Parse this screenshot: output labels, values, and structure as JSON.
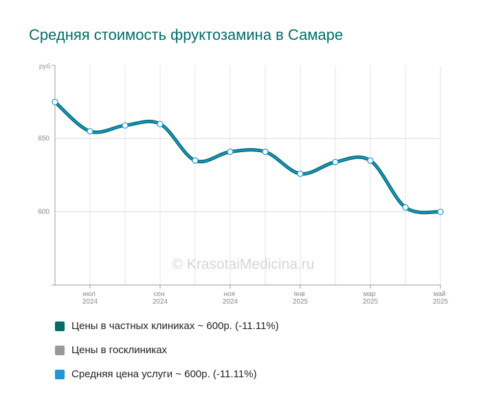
{
  "chart_data": {
    "type": "line",
    "title": "Средняя стоимость фруктозамина в Самаре",
    "y_label": "руб.",
    "watermark": "© KrasotaiMedicina.ru",
    "categories": [
      null,
      "июл 2024",
      null,
      "сен 2024",
      null,
      "ноя 2024",
      null,
      "янв 2025",
      null,
      "мар 2025",
      null,
      "май 2025"
    ],
    "series": [
      {
        "name": "Цены в частных клиниках ~ 600р. (-11.11%)",
        "color": "#006d64",
        "values": [
          675,
          655,
          659,
          660,
          635,
          641,
          641,
          626,
          634,
          635,
          603,
          600
        ]
      },
      {
        "name": "Цены в госклиниках",
        "color": "#999999",
        "values": [
          null,
          null,
          null,
          null,
          null,
          null,
          null,
          null,
          null,
          null,
          null,
          null
        ]
      },
      {
        "name": "Средняя цена услуги ~ 600р. (-11.11%)",
        "color": "#1e96d8",
        "values": [
          675,
          655,
          659,
          660,
          635,
          641,
          641,
          626,
          634,
          635,
          603,
          600
        ]
      }
    ],
    "ylim": [
      550,
      700
    ],
    "yticks": [
      600,
      650
    ],
    "grid": true
  }
}
